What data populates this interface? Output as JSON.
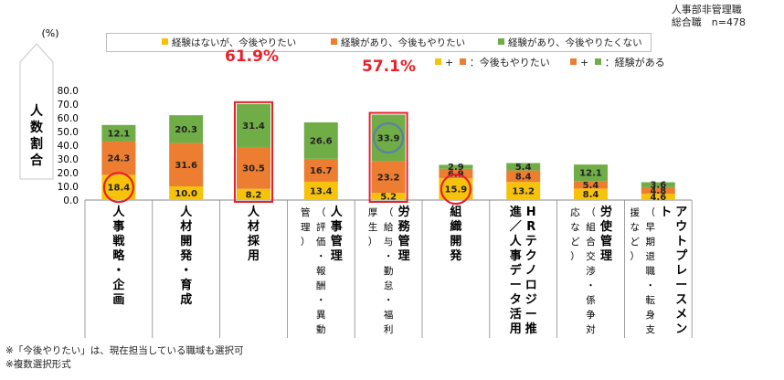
{
  "corner": {
    "line1": "人事部非管理職",
    "line2": "総合職　n=478"
  },
  "colors": {
    "yellow": "#f7c20a",
    "orange": "#ed7d31",
    "green": "#70ad47",
    "red": "#e8202a",
    "blue": "#5b7fa6"
  },
  "legend": [
    {
      "label": "経験はないが、今後やりたい",
      "color": "#f7c20a"
    },
    {
      "label": "経験があり、今後もやりたい",
      "color": "#ed7d31"
    },
    {
      "label": "経験があり、今後やりたくない",
      "color": "#70ad47"
    }
  ],
  "key2": {
    "a": "+",
    "a_text": "：今後もやりたい",
    "b": "+",
    "b_text": "：経験がある"
  },
  "highlights": {
    "jinzai": "61.9%",
    "roumu": "57.1%"
  },
  "footnotes": [
    "※「今後やりたい」は、現在担当している職域も選択可",
    "※複数選択形式"
  ],
  "chart_data": {
    "type": "bar",
    "stacked": true,
    "ylabel": "人数割合",
    "yunit": "(%)",
    "ylim": [
      0,
      80
    ],
    "yticks": [
      "0.0",
      "10.0",
      "20.0",
      "30.0",
      "40.0",
      "50.0",
      "60.0",
      "70.0",
      "80.0"
    ],
    "categories": [
      {
        "main": "人事戦略・企画",
        "sub": ""
      },
      {
        "main": "人材開発・育成",
        "sub": ""
      },
      {
        "main": "人材採用",
        "sub": ""
      },
      {
        "main": "人事管理",
        "sub": "（評価・報酬・異動管理）"
      },
      {
        "main": "労務管理",
        "sub": "（給与・勤怠・福利厚生）"
      },
      {
        "main": "組織開発",
        "sub": ""
      },
      {
        "main": "HRテクノロジー推進／人事データ活用",
        "sub": ""
      },
      {
        "main": "労使管理",
        "sub": "（組合交渉・係争対応など）"
      },
      {
        "main": "アウトプレースメント",
        "sub": "（早期退職・転身支援など）"
      }
    ],
    "series": [
      {
        "name": "経験はないが、今後やりたい",
        "values": [
          18.4,
          10.0,
          8.2,
          13.4,
          5.2,
          15.9,
          13.2,
          8.4,
          4.6
        ]
      },
      {
        "name": "経験があり、今後もやりたい",
        "values": [
          24.3,
          31.6,
          30.5,
          16.7,
          23.2,
          6.9,
          8.4,
          5.4,
          4.8
        ]
      },
      {
        "name": "経験があり、今後やりたくない",
        "values": [
          12.1,
          20.3,
          31.4,
          26.6,
          33.9,
          2.9,
          5.4,
          12.1,
          3.6
        ]
      }
    ]
  }
}
